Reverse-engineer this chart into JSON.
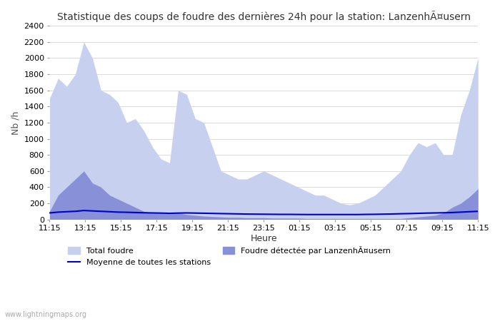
{
  "title": "Statistique des coups de foudre des dernières 24h pour la station: LanzenhÃ¤usern",
  "xlabel": "Heure",
  "ylabel": "Nb /h",
  "watermark": "www.lightningmaps.org",
  "x_ticks": [
    "11:15",
    "13:15",
    "15:15",
    "17:15",
    "19:15",
    "21:15",
    "23:15",
    "01:15",
    "03:15",
    "05:15",
    "07:15",
    "09:15",
    "11:15"
  ],
  "ylim": [
    0,
    2400
  ],
  "yticks": [
    0,
    200,
    400,
    600,
    800,
    1000,
    1200,
    1400,
    1600,
    1800,
    2000,
    2200,
    2400
  ],
  "color_total": "#c8d0f0",
  "color_local": "#8890d8",
  "color_mean": "#0000cc",
  "legend_total": "Total foudre",
  "legend_local": "Foudre détectée par LanzenhÃ¤usern",
  "legend_mean": "Moyenne de toutes les stations",
  "total_foudre": [
    1500,
    1750,
    1650,
    1800,
    2200,
    2000,
    1600,
    1550,
    1450,
    1200,
    1250,
    1100,
    900,
    750,
    700,
    1600,
    1550,
    1250,
    1200,
    900,
    600,
    550,
    500,
    500,
    550,
    600,
    550,
    500,
    450,
    400,
    350,
    300,
    300,
    250,
    200,
    180,
    200,
    250,
    300,
    400,
    500,
    600,
    800,
    950,
    900,
    950,
    800,
    800,
    1300,
    1600,
    2000
  ],
  "local_foudre": [
    100,
    300,
    400,
    500,
    600,
    450,
    400,
    300,
    250,
    200,
    150,
    100,
    80,
    80,
    70,
    80,
    60,
    50,
    40,
    35,
    30,
    25,
    25,
    20,
    20,
    20,
    15,
    15,
    15,
    15,
    10,
    10,
    10,
    10,
    10,
    10,
    10,
    10,
    10,
    10,
    10,
    10,
    20,
    30,
    40,
    50,
    80,
    150,
    200,
    280,
    380
  ],
  "mean_line": [
    80,
    90,
    95,
    100,
    110,
    105,
    100,
    95,
    90,
    88,
    85,
    82,
    80,
    78,
    75,
    78,
    80,
    78,
    76,
    74,
    72,
    70,
    68,
    66,
    65,
    64,
    63,
    62,
    62,
    61,
    60,
    60,
    60,
    60,
    60,
    60,
    60,
    62,
    63,
    65,
    67,
    70,
    72,
    75,
    78,
    80,
    82,
    85,
    90,
    95,
    100
  ]
}
